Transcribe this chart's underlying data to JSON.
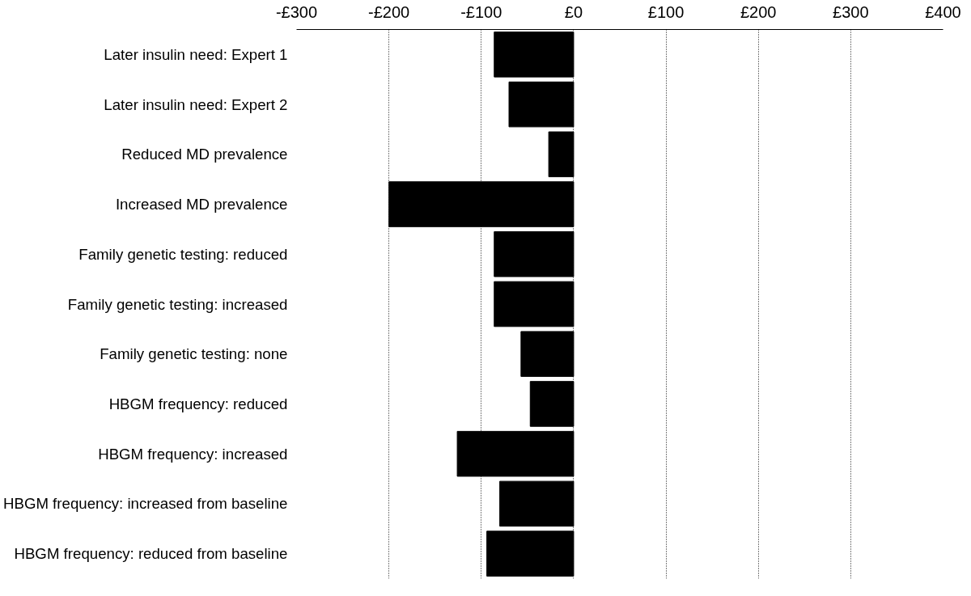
{
  "chart_data": {
    "type": "bar",
    "orientation": "horizontal",
    "categories": [
      "Later insulin need: Expert 1",
      "Later insulin need: Expert 2",
      "Reduced MD prevalence",
      "Increased MD prevalence",
      "Family genetic testing: reduced",
      "Family genetic testing: increased",
      "Family genetic testing: none",
      "HBGM frequency: reduced",
      "HBGM frequency: increased",
      "HBGM frequency: increased from baseline",
      "HBGM frequency: reduced from baseline"
    ],
    "values": [
      -86,
      -70,
      -27,
      -200,
      -86,
      -86,
      -57,
      -47,
      -126,
      -80,
      -94
    ],
    "color": "#000000",
    "xlim": [
      -300,
      400
    ],
    "xticks": [
      {
        "value": -300,
        "label": "-£300"
      },
      {
        "value": -200,
        "label": "-£200"
      },
      {
        "value": -100,
        "label": "-£100"
      },
      {
        "value": 0,
        "label": "£0"
      },
      {
        "value": 100,
        "label": "£100"
      },
      {
        "value": 200,
        "label": "£200"
      },
      {
        "value": 300,
        "label": "£300"
      },
      {
        "value": 400,
        "label": "£400"
      }
    ],
    "grid": "x"
  }
}
